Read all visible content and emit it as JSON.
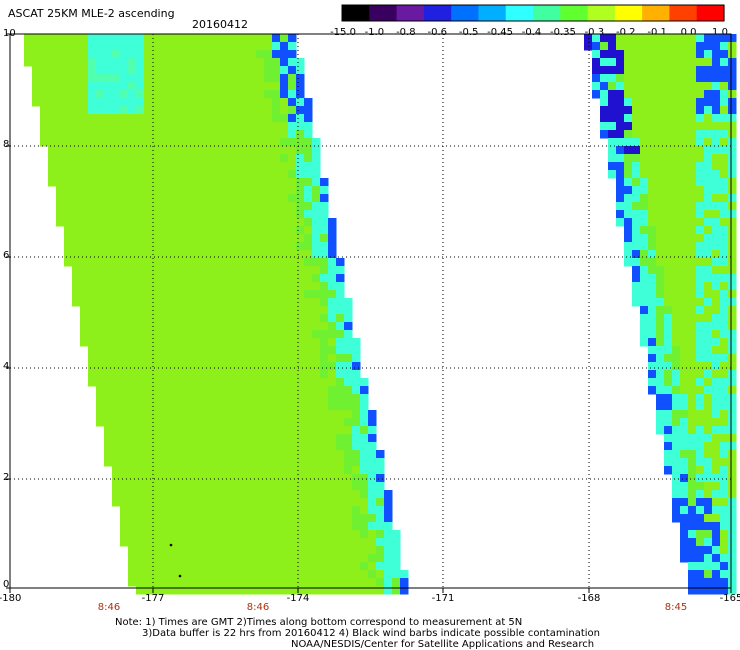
{
  "header": {
    "title": "ASCAT 25KM MLE-2 ascending",
    "date": "20160412"
  },
  "colorbar": {
    "labels": [
      "-15.0",
      "-1.0",
      "-0.8",
      "-0.6",
      "-0.5",
      "-0.45",
      "-0.4",
      "-0.35",
      "-0.3",
      "-0.2",
      "-0.1",
      "0.0",
      "1.0"
    ],
    "colors": [
      "#000000",
      "#3a0060",
      "#6a1aa0",
      "#2020e0",
      "#0070ff",
      "#00b0ff",
      "#30ffff",
      "#40ffa0",
      "#60ff30",
      "#b0ff20",
      "#ffff00",
      "#ffb000",
      "#ff4000",
      "#ff0000"
    ]
  },
  "axes": {
    "y_ticks": [
      "10",
      "8",
      "6",
      "4",
      "2",
      "0"
    ],
    "x_ticks": [
      "-180",
      "-177",
      "-174",
      "-171",
      "-168",
      "-165"
    ],
    "time_labels": [
      "8:46",
      "8:46",
      "8:45"
    ],
    "x_range": [
      -180,
      -165
    ],
    "y_range": [
      0,
      10
    ]
  },
  "notes": {
    "line1": "Note: 1) Times are GMT 2)Times along bottom correspond to measurement at 5N",
    "line2": "3)Data buffer is 22 hrs from 20160412 4) Black wind barbs indicate possible contamination",
    "line3": "NOAA/NESDIS/Center for Satellite Applications and Research"
  },
  "legend_colors": {
    "swath_green": "#8ef01a",
    "swath_light_green": "#6ff030",
    "swath_cyan": "#3fffd8",
    "swath_blue": "#1050ff",
    "swath_dark": "#2010d0"
  }
}
